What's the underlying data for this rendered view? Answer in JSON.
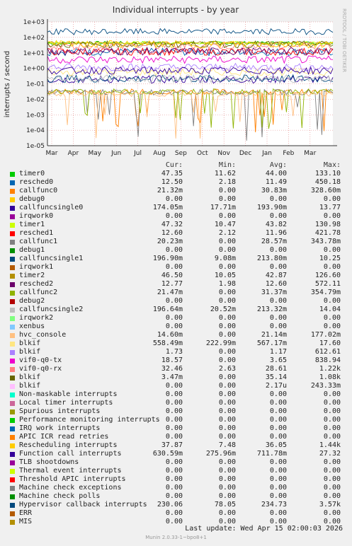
{
  "chart_data": {
    "type": "line",
    "title": "Individual interrupts - by year",
    "ylabel": "interrupts / second",
    "side_label": "RRDTOOL / TOBI OETIKER",
    "yscale": "log",
    "ylim": [
      1e-05,
      1000
    ],
    "yticks": [
      "1e+03",
      "1e+02",
      "1e+01",
      "1e+00",
      "1e-01",
      "1e-02",
      "1e-03",
      "1e-04",
      "1e-05"
    ],
    "xticks": [
      "Mar",
      "Apr",
      "May",
      "Jun",
      "Jul",
      "Aug",
      "Sep",
      "Oct",
      "Nov",
      "Dec",
      "Jan",
      "Feb",
      "Mar"
    ],
    "grid": true,
    "series": [
      {
        "name": "timer0",
        "color": "#00cc00",
        "cur": "47.35",
        "min": "11.62",
        "avg": "44.00",
        "max": "133.10"
      },
      {
        "name": "resched0",
        "color": "#0066b3",
        "cur": "12.50",
        "min": "2.18",
        "avg": "11.49",
        "max": "450.18"
      },
      {
        "name": "callfunc0",
        "color": "#ff8000",
        "cur": "21.32m",
        "min": "0.00",
        "avg": "30.83m",
        "max": "328.60m"
      },
      {
        "name": "debug0",
        "color": "#ffcc00",
        "cur": "0.00",
        "min": "0.00",
        "avg": "0.00",
        "max": "0.00"
      },
      {
        "name": "callfuncsingle0",
        "color": "#330099",
        "cur": "174.05m",
        "min": "17.71m",
        "avg": "193.90m",
        "max": "13.77"
      },
      {
        "name": "irqwork0",
        "color": "#990099",
        "cur": "0.00",
        "min": "0.00",
        "avg": "0.00",
        "max": "0.00"
      },
      {
        "name": "timer1",
        "color": "#ccff00",
        "cur": "47.32",
        "min": "10.47",
        "avg": "43.82",
        "max": "130.98"
      },
      {
        "name": "resched1",
        "color": "#ff0000",
        "cur": "12.60",
        "min": "2.12",
        "avg": "11.96",
        "max": "421.78"
      },
      {
        "name": "callfunc1",
        "color": "#808080",
        "cur": "20.23m",
        "min": "0.00",
        "avg": "28.57m",
        "max": "343.78m"
      },
      {
        "name": "debug1",
        "color": "#008f00",
        "cur": "0.00",
        "min": "0.00",
        "avg": "0.00",
        "max": "0.00"
      },
      {
        "name": "callfuncsingle1",
        "color": "#00487d",
        "cur": "196.90m",
        "min": "9.08m",
        "avg": "213.80m",
        "max": "10.25"
      },
      {
        "name": "irqwork1",
        "color": "#b35a00",
        "cur": "0.00",
        "min": "0.00",
        "avg": "0.00",
        "max": "0.00"
      },
      {
        "name": "timer2",
        "color": "#b38f00",
        "cur": "46.50",
        "min": "10.05",
        "avg": "42.87",
        "max": "126.60"
      },
      {
        "name": "resched2",
        "color": "#6b006b",
        "cur": "12.77",
        "min": "1.98",
        "avg": "12.60",
        "max": "572.11"
      },
      {
        "name": "callfunc2",
        "color": "#8fb300",
        "cur": "21.47m",
        "min": "0.00",
        "avg": "31.37m",
        "max": "354.79m"
      },
      {
        "name": "debug2",
        "color": "#b30000",
        "cur": "0.00",
        "min": "0.00",
        "avg": "0.00",
        "max": "0.00"
      },
      {
        "name": "callfuncsingle2",
        "color": "#bebebe",
        "cur": "196.64m",
        "min": "20.52m",
        "avg": "213.32m",
        "max": "14.04"
      },
      {
        "name": "irqwork2",
        "color": "#80ff80",
        "cur": "0.00",
        "min": "0.00",
        "avg": "0.00",
        "max": "0.00"
      },
      {
        "name": "xenbus",
        "color": "#80c9ff",
        "cur": "0.00",
        "min": "0.00",
        "avg": "0.00",
        "max": "0.00"
      },
      {
        "name": "hvc_console",
        "color": "#ffc080",
        "cur": "14.60m",
        "min": "0.00",
        "avg": "21.14m",
        "max": "177.02m"
      },
      {
        "name": "blkif",
        "color": "#ffe680",
        "cur": "558.49m",
        "min": "222.99m",
        "avg": "567.17m",
        "max": "17.60"
      },
      {
        "name": "blkif",
        "color": "#aa80ff",
        "cur": "1.73",
        "min": "0.00",
        "avg": "1.17",
        "max": "612.61"
      },
      {
        "name": "vif0-q0-tx",
        "color": "#ee00cc",
        "cur": "18.57",
        "min": "0.00",
        "avg": "3.65",
        "max": "838.94"
      },
      {
        "name": "vif0-q0-rx",
        "color": "#ff8080",
        "cur": "32.46",
        "min": "2.63",
        "avg": "28.61",
        "max": "1.22k"
      },
      {
        "name": "blkif",
        "color": "#666600",
        "cur": "3.47m",
        "min": "0.00",
        "avg": "35.14",
        "max": "1.08k"
      },
      {
        "name": "blkif",
        "color": "#ffbfff",
        "cur": "0.00",
        "min": "0.00",
        "avg": "2.17u",
        "max": "243.33m"
      },
      {
        "name": "Non-maskable interrupts",
        "color": "#00ffcc",
        "cur": "0.00",
        "min": "0.00",
        "avg": "0.00",
        "max": "0.00"
      },
      {
        "name": "Local timer interrupts",
        "color": "#cc6699",
        "cur": "0.00",
        "min": "0.00",
        "avg": "0.00",
        "max": "0.00"
      },
      {
        "name": "Spurious interrupts",
        "color": "#999900",
        "cur": "0.00",
        "min": "0.00",
        "avg": "0.00",
        "max": "0.00"
      },
      {
        "name": "Performance monitoring interrupts",
        "color": "#00cc00",
        "cur": "0.00",
        "min": "0.00",
        "avg": "0.00",
        "max": "0.00"
      },
      {
        "name": "IRQ work interrupts",
        "color": "#0066b3",
        "cur": "0.00",
        "min": "0.00",
        "avg": "0.00",
        "max": "0.00"
      },
      {
        "name": "APIC ICR read retries",
        "color": "#ff8000",
        "cur": "0.00",
        "min": "0.00",
        "avg": "0.00",
        "max": "0.00"
      },
      {
        "name": "Rescheduling interrupts",
        "color": "#ffcc00",
        "cur": "37.87",
        "min": "7.48",
        "avg": "36.05",
        "max": "1.44k"
      },
      {
        "name": "Function call interrupts",
        "color": "#330099",
        "cur": "630.59m",
        "min": "275.96m",
        "avg": "711.78m",
        "max": "27.32"
      },
      {
        "name": "TLB shootdowns",
        "color": "#990099",
        "cur": "0.00",
        "min": "0.00",
        "avg": "0.00",
        "max": "0.00"
      },
      {
        "name": "Thermal event interrupts",
        "color": "#ccff00",
        "cur": "0.00",
        "min": "0.00",
        "avg": "0.00",
        "max": "0.00"
      },
      {
        "name": "Threshold APIC interrupts",
        "color": "#ff0000",
        "cur": "0.00",
        "min": "0.00",
        "avg": "0.00",
        "max": "0.00"
      },
      {
        "name": "Machine check exceptions",
        "color": "#808080",
        "cur": "0.00",
        "min": "0.00",
        "avg": "0.00",
        "max": "0.00"
      },
      {
        "name": "Machine check polls",
        "color": "#008f00",
        "cur": "0.00",
        "min": "0.00",
        "avg": "0.00",
        "max": "0.00"
      },
      {
        "name": "Hypervisor callback interrupts",
        "color": "#00487d",
        "cur": "230.06",
        "min": "78.05",
        "avg": "234.73",
        "max": "3.57k"
      },
      {
        "name": "ERR",
        "color": "#b35a00",
        "cur": "0.00",
        "min": "0.00",
        "avg": "0.00",
        "max": "0.00"
      },
      {
        "name": "MIS",
        "color": "#b38f00",
        "cur": "0.00",
        "min": "0.00",
        "avg": "0.00",
        "max": "0.00"
      }
    ]
  },
  "legend_headers": {
    "cur": "Cur:",
    "min": "Min:",
    "avg": "Avg:",
    "max": "Max:"
  },
  "last_update": "Last update:  Wed Apr 15 02:00:03 2026",
  "footer": "Munin 2.0.33-1~bpo8+1"
}
